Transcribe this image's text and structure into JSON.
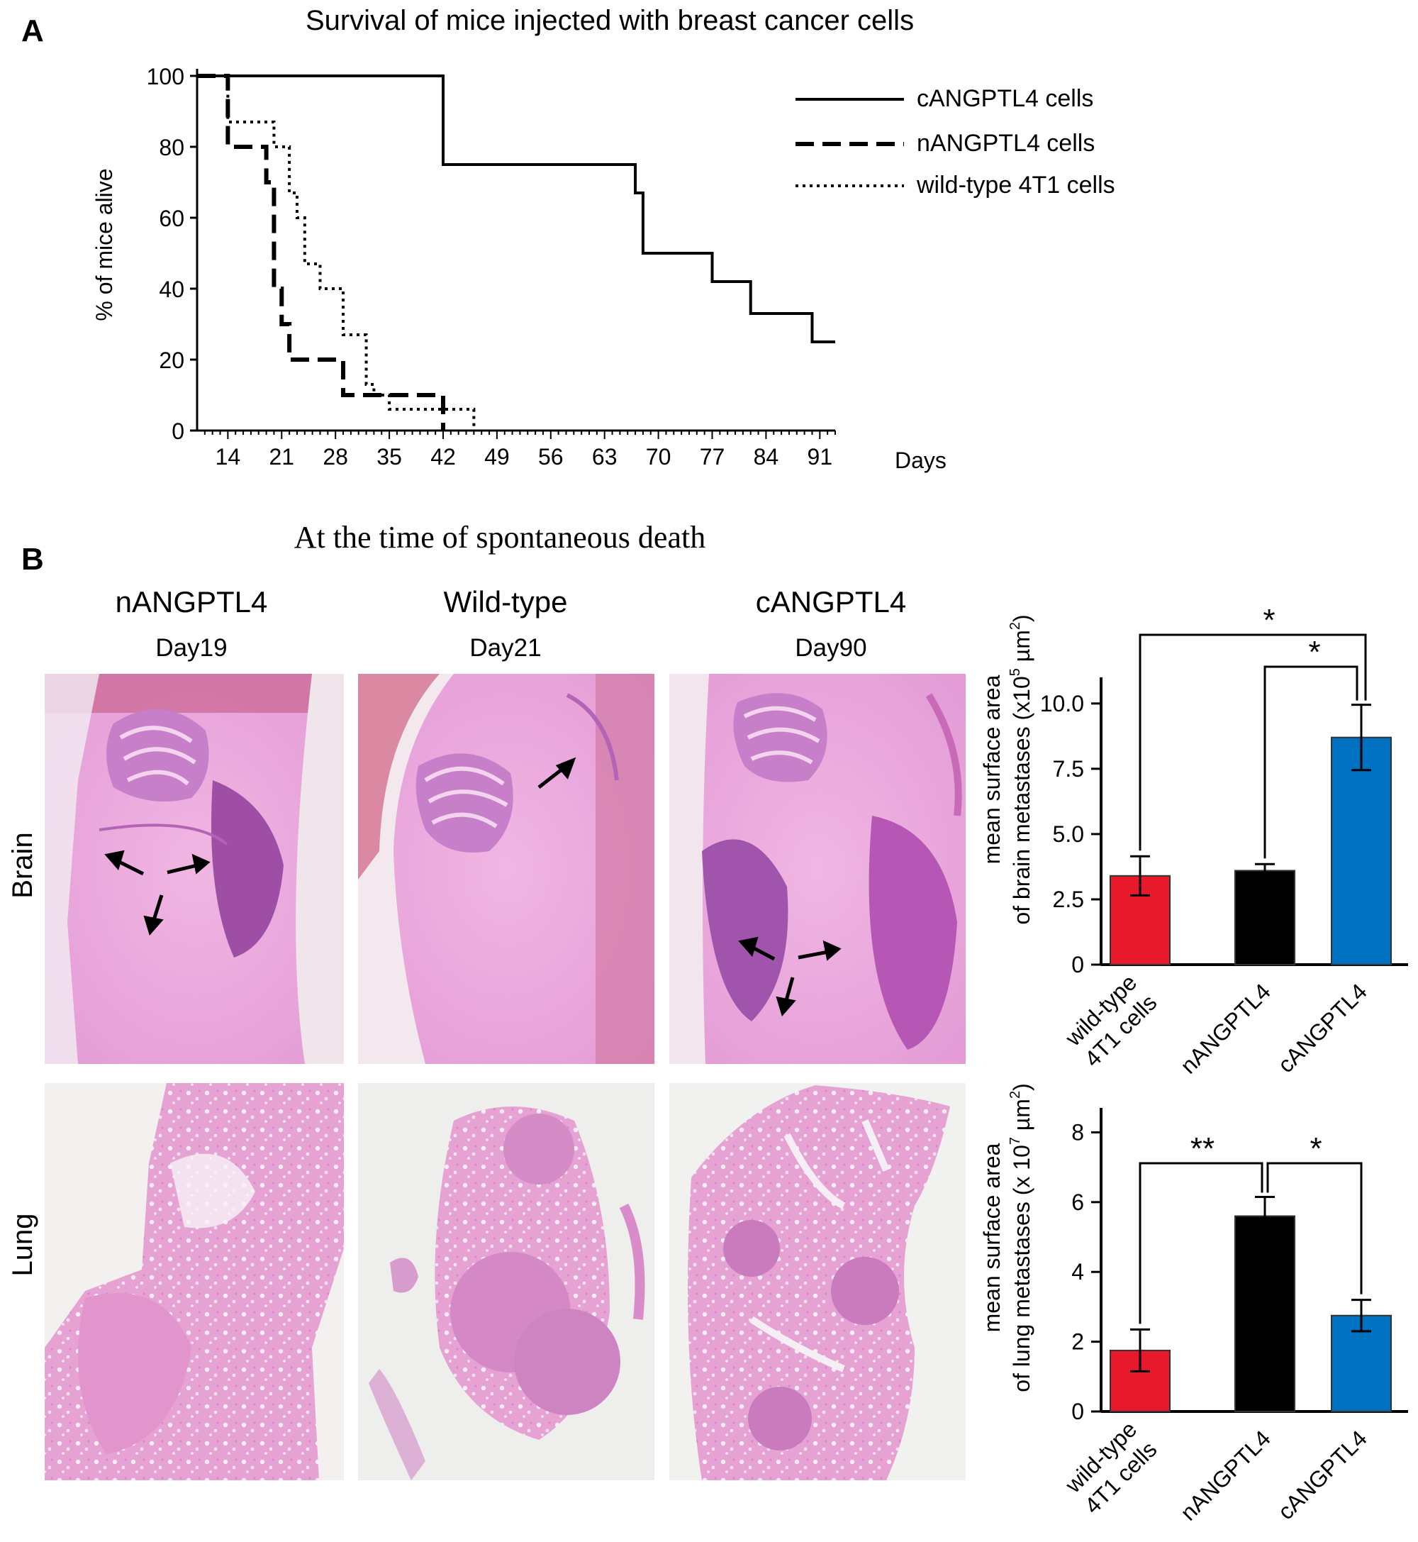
{
  "panel_a": {
    "letter": "A",
    "chart_data": {
      "type": "line",
      "title": "Survival of mice injected with breast cancer cells",
      "xlabel": "Days",
      "ylabel": "% of mice alive",
      "xlim": [
        10,
        93
      ],
      "ylim": [
        0,
        100
      ],
      "x_ticks": [
        14,
        21,
        28,
        35,
        42,
        49,
        56,
        63,
        70,
        77,
        84,
        91
      ],
      "y_ticks": [
        0,
        20,
        40,
        60,
        80,
        100
      ],
      "legend_position": "top-right",
      "series": [
        {
          "name": "cANGPTL4 cells",
          "style": "solid",
          "x": [
            10,
            42,
            42,
            67,
            67,
            68,
            68,
            77,
            77,
            82,
            82,
            90,
            90,
            93
          ],
          "y": [
            100,
            100,
            75,
            75,
            67,
            67,
            50,
            50,
            42,
            42,
            33,
            33,
            25,
            25
          ]
        },
        {
          "name": "nANGPTL4 cells",
          "style": "dashed",
          "x": [
            10,
            14,
            14,
            19,
            19,
            20,
            20,
            21,
            21,
            22,
            22,
            29,
            29,
            31,
            31,
            42,
            42
          ],
          "y": [
            100,
            100,
            80,
            80,
            70,
            70,
            40,
            40,
            30,
            30,
            20,
            20,
            10,
            10,
            10,
            10,
            0
          ]
        },
        {
          "name": "wild-type 4T1 cells",
          "style": "dotted",
          "x": [
            10,
            14,
            14,
            20,
            20,
            22,
            22,
            23,
            23,
            24,
            24,
            26,
            26,
            29,
            29,
            32,
            32,
            33,
            33,
            35,
            35,
            46,
            46
          ],
          "y": [
            100,
            100,
            87,
            87,
            80,
            80,
            67,
            67,
            60,
            60,
            47,
            47,
            40,
            40,
            27,
            27,
            13,
            13,
            10,
            10,
            6,
            6,
            0
          ]
        }
      ]
    }
  },
  "panel_b": {
    "letter": "B",
    "title": "At the time of spontaneous death",
    "columns": [
      {
        "name": "nANGPTL4",
        "day": "Day19"
      },
      {
        "name": "Wild-type",
        "day": "Day21"
      },
      {
        "name": "cANGPTL4",
        "day": "Day90"
      }
    ],
    "row_labels": [
      "Brain",
      "Lung"
    ],
    "brain_chart": {
      "chart_data": {
        "type": "bar",
        "ylabel_line1": "mean surface area",
        "ylabel_line2_prefix": "of brain metastases (x10",
        "ylabel_exp": "5",
        "ylabel_unit": " µm",
        "ylabel_unit_exp": "2",
        "ylabel_close": ")",
        "categories": [
          [
            "wild-type",
            "4T1 cells"
          ],
          [
            "nANGPTL4"
          ],
          [
            "cANGPTL4"
          ]
        ],
        "values": [
          3.4,
          3.6,
          8.7
        ],
        "errors": [
          0.75,
          0.25,
          1.25
        ],
        "colors": [
          "#e8192c",
          "#000000",
          "#0070c0"
        ],
        "ylim": [
          0,
          11
        ],
        "y_ticks": [
          "0",
          "2.5",
          "5.0",
          "7.5",
          "10.0"
        ],
        "y_tick_values": [
          0,
          2.5,
          5.0,
          7.5,
          10.0
        ],
        "significance": [
          {
            "from": 0,
            "to": 2,
            "label": "*"
          },
          {
            "from": 1,
            "to": 2,
            "label": "*"
          }
        ]
      }
    },
    "lung_chart": {
      "chart_data": {
        "type": "bar",
        "ylabel_line1": "mean surface area",
        "ylabel_line2_prefix": "of lung metastases (x 10",
        "ylabel_exp": "7",
        "ylabel_unit": " µm",
        "ylabel_unit_exp": "2",
        "ylabel_close": ")",
        "categories": [
          [
            "wild-type",
            "4T1 cells"
          ],
          [
            "nANGPTL4"
          ],
          [
            "cANGPTL4"
          ]
        ],
        "values": [
          1.75,
          5.6,
          2.75
        ],
        "errors": [
          0.6,
          0.55,
          0.45
        ],
        "colors": [
          "#e8192c",
          "#000000",
          "#0070c0"
        ],
        "ylim": [
          0,
          8.7
        ],
        "y_ticks": [
          "0",
          "2",
          "4",
          "6",
          "8"
        ],
        "y_tick_values": [
          0,
          2,
          4,
          6,
          8
        ],
        "significance": [
          {
            "from": 0,
            "to": 1,
            "label": "**"
          },
          {
            "from": 1,
            "to": 2,
            "label": "*"
          }
        ]
      }
    }
  }
}
